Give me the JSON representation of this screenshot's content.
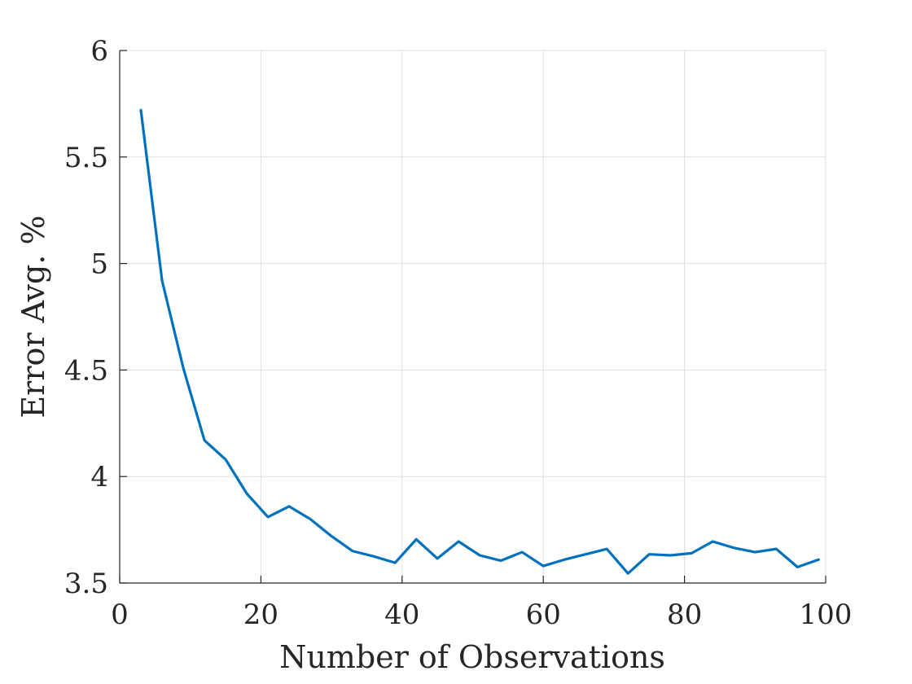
{
  "chart_data": {
    "type": "line",
    "title": "",
    "xlabel": "Number of Observations",
    "ylabel": "Error Avg. %",
    "xlim": [
      0,
      100
    ],
    "ylim": [
      3.5,
      6
    ],
    "xticks": [
      0,
      20,
      40,
      60,
      80,
      100
    ],
    "xtick_labels": [
      "0",
      "20",
      "40",
      "60",
      "80",
      "100"
    ],
    "yticks": [
      3.5,
      4,
      4.5,
      5,
      5.5,
      6
    ],
    "ytick_labels": [
      "3.5",
      "4",
      "4.5",
      "5",
      "5.5",
      "6"
    ],
    "grid": true,
    "series": [
      {
        "color": "#0072BD",
        "x": [
          3,
          6,
          9,
          12,
          15,
          18,
          21,
          24,
          27,
          30,
          33,
          36,
          39,
          42,
          45,
          48,
          51,
          54,
          57,
          60,
          63,
          66,
          69,
          72,
          75,
          78,
          81,
          84,
          87,
          90,
          93,
          96,
          99
        ],
        "y": [
          5.72,
          4.92,
          4.51,
          4.17,
          4.08,
          3.92,
          3.81,
          3.86,
          3.8,
          3.72,
          3.65,
          3.625,
          3.595,
          3.705,
          3.615,
          3.695,
          3.63,
          3.605,
          3.645,
          3.58,
          3.61,
          3.635,
          3.66,
          3.545,
          3.635,
          3.63,
          3.64,
          3.695,
          3.665,
          3.645,
          3.66,
          3.575,
          3.61
        ]
      }
    ]
  }
}
